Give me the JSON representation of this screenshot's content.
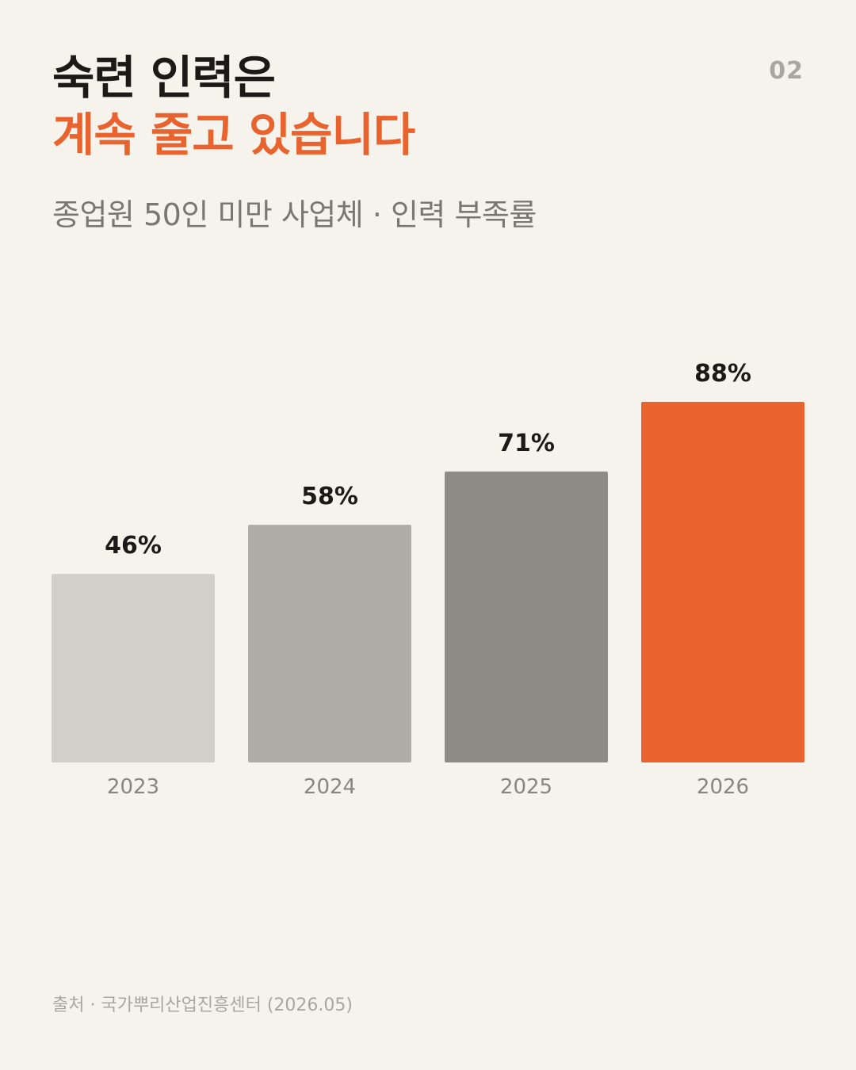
{
  "page_number": "02",
  "title": {
    "line1": "숙련 인력은",
    "line2": "계속 줄고 있습니다"
  },
  "subtitle": "종업원 50인 미만 사업체 · 인력 부족률",
  "chart_data": {
    "type": "bar",
    "categories": [
      "2023",
      "2024",
      "2025",
      "2026"
    ],
    "values": [
      46,
      58,
      71,
      88
    ],
    "value_labels": [
      "46%",
      "58%",
      "71%",
      "88%"
    ],
    "bar_colors": [
      "#d2cec8",
      "#afaba5",
      "#8f8b86",
      "#e8632e"
    ],
    "ylim": [
      0,
      100
    ],
    "grid": false,
    "legend": "none"
  },
  "source": "출처 · 국가뿌리산업진흥센터 (2026.05)"
}
